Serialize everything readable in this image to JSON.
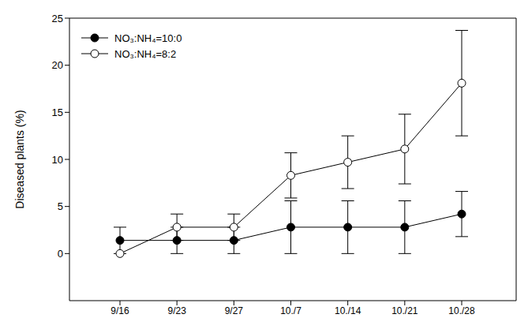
{
  "chart_data": {
    "type": "line",
    "y_label": "Diseased plants (%)",
    "categories": [
      "9/16",
      "9/23",
      "9/27",
      "10./7",
      "10./14",
      "10./21",
      "10./28"
    ],
    "series": [
      {
        "name": "NO₃:NH₄=10:0",
        "color": "#000000",
        "marker": "filled_circle",
        "line_style": "solid",
        "values": [
          1.4,
          1.4,
          1.4,
          2.8,
          2.8,
          2.8,
          4.2
        ],
        "errors": [
          1.4,
          1.4,
          1.4,
          2.8,
          2.8,
          2.8,
          2.4
        ]
      },
      {
        "name": "NO₃:NH₄=8:2",
        "color": "#000000",
        "marker": "open_circle",
        "line_style": "solid",
        "values": [
          0,
          2.8,
          2.8,
          8.3,
          9.7,
          11.1,
          18.1
        ],
        "errors": [
          0,
          1.4,
          1.4,
          2.4,
          2.8,
          3.7,
          5.6
        ]
      }
    ],
    "ylim": [
      -5,
      25
    ],
    "yticks": [
      0,
      5,
      10,
      15,
      20,
      25
    ],
    "grid": false,
    "legend": "upper left"
  }
}
